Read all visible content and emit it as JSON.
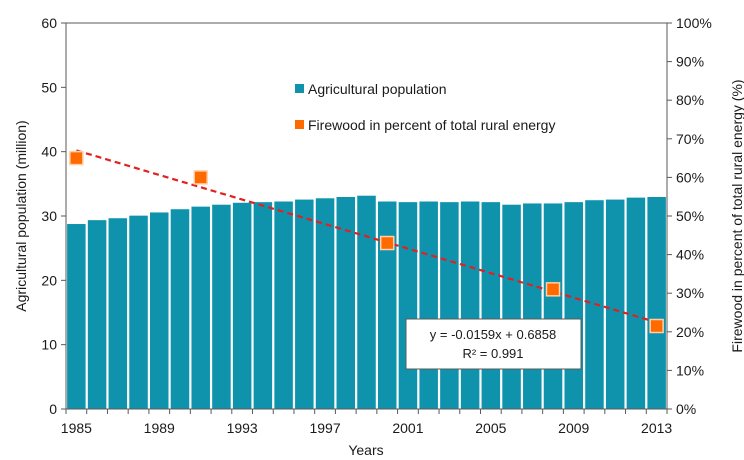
{
  "chart_data": {
    "type": "bar",
    "title": "",
    "xlabel": "Years",
    "ylabel": "Agricultural population (million)",
    "y2label": "Firewood in percent of total rural energy (%)",
    "ylim": [
      0,
      60
    ],
    "y_ticks": [
      "0",
      "10",
      "20",
      "30",
      "40",
      "50",
      "60"
    ],
    "y2lim": [
      0,
      1
    ],
    "y2_ticks": [
      "0%",
      "10%",
      "20%",
      "30%",
      "40%",
      "50%",
      "60%",
      "70%",
      "80%",
      "90%",
      "100%"
    ],
    "x_tick_labels": [
      "1985",
      "1989",
      "1993",
      "1997",
      "2001",
      "2005",
      "2009",
      "2013"
    ],
    "grid": false,
    "legend_position": "upper-center",
    "series": [
      {
        "name": "Agricultural population",
        "type": "bar",
        "axis": "left",
        "color": "#0f93ad",
        "x": [
          1985,
          1986,
          1987,
          1988,
          1989,
          1990,
          1991,
          1992,
          1993,
          1994,
          1995,
          1996,
          1997,
          1998,
          1999,
          2000,
          2001,
          2002,
          2003,
          2004,
          2005,
          2006,
          2007,
          2008,
          2009,
          2010,
          2011,
          2012,
          2013
        ],
        "values": [
          28.8,
          29.4,
          29.7,
          30.1,
          30.6,
          31.1,
          31.5,
          31.8,
          32.1,
          32.2,
          32.3,
          32.6,
          32.8,
          33.0,
          33.2,
          32.3,
          32.2,
          32.3,
          32.2,
          32.3,
          32.2,
          31.8,
          32.0,
          32.0,
          32.2,
          32.5,
          32.6,
          32.9,
          33.0
        ]
      },
      {
        "name": "Firewood in percent of total rural energy",
        "type": "scatter",
        "axis": "right",
        "color": "#ff6a00",
        "x": [
          1985,
          1991,
          2000,
          2008,
          2013
        ],
        "values": [
          0.65,
          0.6,
          0.43,
          0.31,
          0.215
        ]
      }
    ],
    "trendline": {
      "series": "Firewood in percent of total rural energy",
      "color": "#e32020",
      "style": "dashed",
      "slope": -0.0159,
      "intercept": 0.6858,
      "x_start": 1985,
      "x_end": 2013,
      "equation": "y = -0.0159x + 0.6858",
      "r2": "R² = 0.991"
    }
  }
}
